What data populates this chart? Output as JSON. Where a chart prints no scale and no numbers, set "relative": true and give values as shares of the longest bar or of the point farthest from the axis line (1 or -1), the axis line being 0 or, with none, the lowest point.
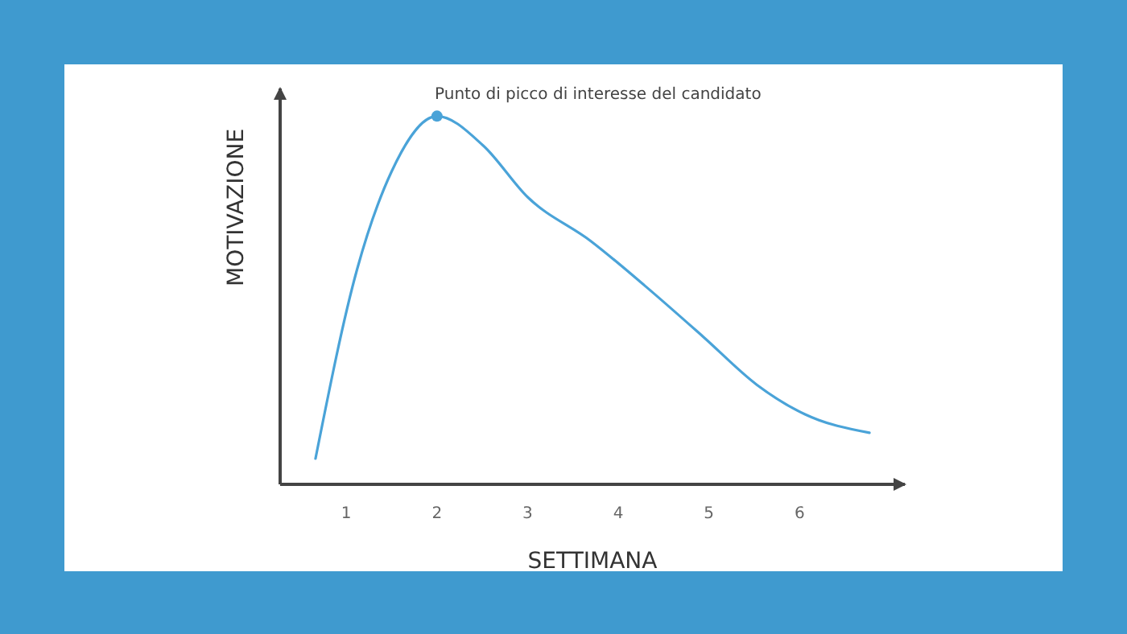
{
  "chart_data": {
    "type": "line",
    "relative": true,
    "xlabel": "SETTIMANA",
    "ylabel": "MOTIVAZIONE",
    "xlim": [
      0.27,
      7.16
    ],
    "xticks": [
      1,
      2,
      3,
      4,
      5,
      6
    ],
    "series": [
      {
        "color": "#4aa3d8",
        "x": [
          0.66,
          1.12,
          1.5,
          2,
          2.51,
          3,
          3.7,
          4.29,
          4.94,
          5.53,
          6.06,
          6.77
        ],
        "values": [
          0.07,
          0.585,
          0.85,
          1,
          0.92,
          0.78,
          0.66,
          0.54,
          0.4,
          0.27,
          0.19,
          0.14
        ]
      }
    ],
    "annotations": [
      {
        "text": "Punto di picco di interesse del candidato",
        "x": 2,
        "y": 1
      }
    ],
    "grid": false,
    "legend": false,
    "marker": "none",
    "line_style": "solid"
  }
}
